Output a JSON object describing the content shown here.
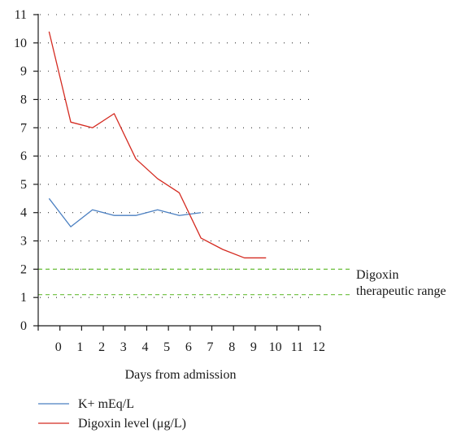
{
  "chart_data": {
    "type": "line",
    "title": "",
    "xlabel": "Days from admission",
    "ylabel": "",
    "xlim": [
      -1,
      12
    ],
    "ylim": [
      0,
      11
    ],
    "x_ticks": [
      0,
      1,
      2,
      3,
      4,
      5,
      6,
      7,
      8,
      9,
      10,
      11,
      12
    ],
    "x_tick_labels": [
      "0",
      "1",
      "2",
      "3",
      "4",
      "5",
      "6",
      "7",
      "8",
      "9",
      "10",
      "11",
      "12"
    ],
    "y_ticks": [
      0,
      1,
      2,
      3,
      4,
      5,
      6,
      7,
      8,
      9,
      10,
      11
    ],
    "y_tick_labels": [
      "0",
      "1",
      "2",
      "3",
      "4",
      "5",
      "6",
      "7",
      "8",
      "9",
      "10",
      "11"
    ],
    "grid": "horizontal dotted",
    "legend_position": "bottom-left",
    "series": [
      {
        "name": "K+ mEq/L",
        "color": "#4a7fc1",
        "x": [
          -0.5,
          0.5,
          1.5,
          2.5,
          3.5,
          4.5,
          5.5,
          6.5
        ],
        "y": [
          4.5,
          3.5,
          4.1,
          3.9,
          3.9,
          4.1,
          3.9,
          4.0
        ]
      },
      {
        "name": "Digoxin level (μg/L)",
        "color": "#d42a20",
        "x": [
          -0.5,
          0.5,
          1.5,
          2.5,
          3.5,
          4.5,
          5.5,
          6.5,
          7.5,
          8.5,
          9.5
        ],
        "y": [
          10.4,
          7.2,
          7.0,
          7.5,
          5.9,
          5.2,
          4.7,
          3.1,
          2.7,
          2.4,
          2.4
        ]
      }
    ],
    "reference_lines": [
      {
        "y": 2.0,
        "color": "#6abf3a",
        "style": "dashed"
      },
      {
        "y": 1.1,
        "color": "#6abf3a",
        "style": "dashed"
      }
    ],
    "annotation": {
      "lines": [
        "Digoxin",
        "therapeutic range"
      ]
    }
  }
}
